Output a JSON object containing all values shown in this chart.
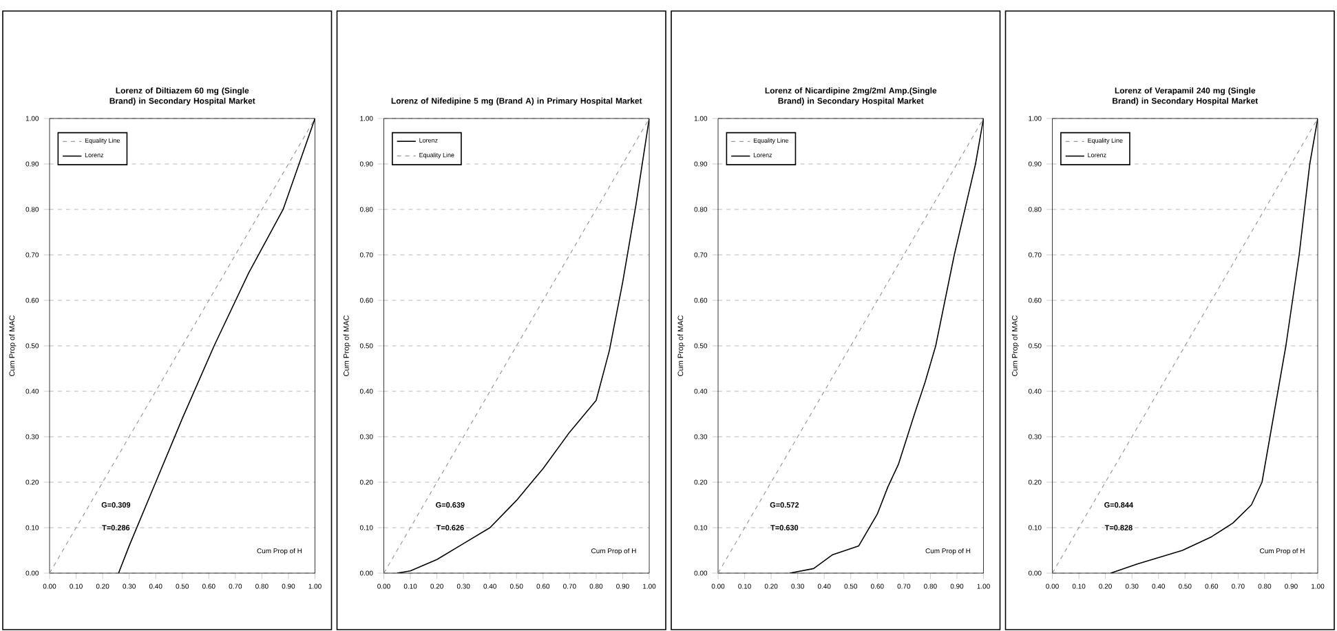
{
  "chart_data": [
    {
      "type": "line",
      "title": "Lorenz of Diltiazem 60 mg (Single Brand) in Secondary Hospital Market",
      "xlabel": "Cum Prop of H",
      "ylabel": "Cum Prop of MAC",
      "xlim": [
        0,
        1
      ],
      "ylim": [
        0,
        1
      ],
      "xticks": [
        {
          "value": 0,
          "label": "0.00"
        },
        {
          "value": 0.1,
          "label": "0.10"
        },
        {
          "value": 0.2,
          "label": "0.20"
        },
        {
          "value": 0.3,
          "label": "0.30"
        },
        {
          "value": 0.4,
          "label": "0.40"
        },
        {
          "value": 0.5,
          "label": "0.50"
        },
        {
          "value": 0.6,
          "label": "0.60"
        },
        {
          "value": 0.7,
          "label": "0.70"
        },
        {
          "value": 0.8,
          "label": "0.80"
        },
        {
          "value": 0.9,
          "label": "0.90"
        },
        {
          "value": 1,
          "label": "1.00"
        }
      ],
      "yticks": [
        {
          "value": 0,
          "label": "0.00"
        },
        {
          "value": 0.1,
          "label": "0.10"
        },
        {
          "value": 0.2,
          "label": "0.20"
        },
        {
          "value": 0.3,
          "label": "0.30"
        },
        {
          "value": 0.4,
          "label": "0.40"
        },
        {
          "value": 0.5,
          "label": "0.50"
        },
        {
          "value": 0.6,
          "label": "0.60"
        },
        {
          "value": 0.7,
          "label": "0.70"
        },
        {
          "value": 0.8,
          "label": "0.80"
        },
        {
          "value": 0.9,
          "label": "0.90"
        },
        {
          "value": 1,
          "label": "1.00"
        }
      ],
      "grid": "y",
      "legend": "top left",
      "annotations": [
        "G=0.309",
        "T=0.286"
      ],
      "series": [
        {
          "name": "Equality Line",
          "color": "#999999",
          "line_style": "dashed",
          "x": [
            0,
            1
          ],
          "values": [
            0,
            1
          ]
        },
        {
          "name": "Lorenz",
          "color": "#000000",
          "line_style": "solid",
          "x": [
            0.26,
            0.3,
            0.4,
            0.5,
            0.62,
            0.75,
            0.88,
            1
          ],
          "values": [
            0,
            0.06,
            0.2,
            0.34,
            0.5,
            0.66,
            0.8,
            1
          ]
        }
      ]
    },
    {
      "type": "line",
      "title": "Lorenz of Nifedipine 5 mg (Brand A) in Primary Hospital Market",
      "xlabel": "Cum Prop of H",
      "ylabel": "Cum Prop of MAC",
      "xlim": [
        0,
        1
      ],
      "ylim": [
        0,
        1
      ],
      "xticks": [
        {
          "value": 0,
          "label": "0.00"
        },
        {
          "value": 0.1,
          "label": "0.10"
        },
        {
          "value": 0.2,
          "label": "0.20"
        },
        {
          "value": 0.3,
          "label": "0.30"
        },
        {
          "value": 0.4,
          "label": "0.40"
        },
        {
          "value": 0.5,
          "label": "0.50"
        },
        {
          "value": 0.6,
          "label": "0.60"
        },
        {
          "value": 0.7,
          "label": "0.70"
        },
        {
          "value": 0.8,
          "label": "0.80"
        },
        {
          "value": 0.9,
          "label": "0.90"
        },
        {
          "value": 1,
          "label": "1.00"
        }
      ],
      "yticks": [
        {
          "value": 0,
          "label": "0.00"
        },
        {
          "value": 0.1,
          "label": "0.10"
        },
        {
          "value": 0.2,
          "label": "0.20"
        },
        {
          "value": 0.3,
          "label": "0.30"
        },
        {
          "value": 0.4,
          "label": "0.40"
        },
        {
          "value": 0.5,
          "label": "0.50"
        },
        {
          "value": 0.6,
          "label": "0.60"
        },
        {
          "value": 0.7,
          "label": "0.70"
        },
        {
          "value": 0.8,
          "label": "0.80"
        },
        {
          "value": 0.9,
          "label": "0.90"
        },
        {
          "value": 1,
          "label": "1.00"
        }
      ],
      "grid": "y",
      "legend": "top left",
      "annotations": [
        "G=0.639",
        "T=0.626"
      ],
      "series": [
        {
          "name": "Lorenz",
          "color": "#000000",
          "line_style": "solid",
          "x": [
            0.05,
            0.1,
            0.2,
            0.3,
            0.4,
            0.5,
            0.6,
            0.7,
            0.8,
            0.85,
            0.9,
            0.95,
            1
          ],
          "values": [
            0,
            0.005,
            0.03,
            0.065,
            0.1,
            0.16,
            0.23,
            0.31,
            0.38,
            0.49,
            0.64,
            0.81,
            1
          ]
        },
        {
          "name": "Equality Line",
          "color": "#999999",
          "line_style": "dashed",
          "x": [
            0,
            1
          ],
          "values": [
            0,
            1
          ]
        }
      ]
    },
    {
      "type": "line",
      "title": "Lorenz of Nicardipine 2mg/2ml Amp.(Single Brand) in Secondary Hospital Market",
      "xlabel": "Cum Prop of H",
      "ylabel": "Cum Prop of MAC",
      "xlim": [
        0,
        1
      ],
      "ylim": [
        0,
        1
      ],
      "xticks": [
        {
          "value": 0,
          "label": "0.00"
        },
        {
          "value": 0.1,
          "label": "0.10"
        },
        {
          "value": 0.2,
          "label": "0.20"
        },
        {
          "value": 0.3,
          "label": "0.30"
        },
        {
          "value": 0.4,
          "label": "0.40"
        },
        {
          "value": 0.5,
          "label": "0.50"
        },
        {
          "value": 0.6,
          "label": "0.60"
        },
        {
          "value": 0.7,
          "label": "0.70"
        },
        {
          "value": 0.8,
          "label": "0.80"
        },
        {
          "value": 0.9,
          "label": "0.90"
        },
        {
          "value": 1,
          "label": "1.00"
        }
      ],
      "yticks": [
        {
          "value": 0,
          "label": "0.00"
        },
        {
          "value": 0.1,
          "label": "0.10"
        },
        {
          "value": 0.2,
          "label": "0.20"
        },
        {
          "value": 0.3,
          "label": "0.30"
        },
        {
          "value": 0.4,
          "label": "0.40"
        },
        {
          "value": 0.5,
          "label": "0.50"
        },
        {
          "value": 0.6,
          "label": "0.60"
        },
        {
          "value": 0.7,
          "label": "0.70"
        },
        {
          "value": 0.8,
          "label": "0.80"
        },
        {
          "value": 0.9,
          "label": "0.90"
        },
        {
          "value": 1,
          "label": "1.00"
        }
      ],
      "grid": "y",
      "legend": "top left",
      "annotations": [
        "G=0.572",
        "T=0.630"
      ],
      "series": [
        {
          "name": "Equality Line",
          "color": "#999999",
          "line_style": "dashed",
          "x": [
            0,
            1
          ],
          "values": [
            0,
            1
          ]
        },
        {
          "name": "Lorenz",
          "color": "#000000",
          "line_style": "solid",
          "x": [
            0.27,
            0.36,
            0.43,
            0.53,
            0.6,
            0.64,
            0.68,
            0.74,
            0.78,
            0.82,
            0.89,
            0.97,
            1
          ],
          "values": [
            0,
            0.01,
            0.04,
            0.06,
            0.13,
            0.19,
            0.24,
            0.35,
            0.42,
            0.5,
            0.7,
            0.9,
            1
          ]
        }
      ]
    },
    {
      "type": "line",
      "title": "Lorenz of Verapamil 240 mg (Single Brand) in Secondary Hospital Market",
      "xlabel": "Cum Prop of H",
      "ylabel": "Cum Prop of MAC",
      "xlim": [
        0,
        1
      ],
      "ylim": [
        0,
        1
      ],
      "xticks": [
        {
          "value": 0,
          "label": "0.00"
        },
        {
          "value": 0.1,
          "label": "0.10"
        },
        {
          "value": 0.2,
          "label": "0.20"
        },
        {
          "value": 0.3,
          "label": "0.30"
        },
        {
          "value": 0.4,
          "label": "0.40"
        },
        {
          "value": 0.5,
          "label": "0.50"
        },
        {
          "value": 0.6,
          "label": "0.60"
        },
        {
          "value": 0.7,
          "label": "0.70"
        },
        {
          "value": 0.8,
          "label": "0.80"
        },
        {
          "value": 0.9,
          "label": "0.90"
        },
        {
          "value": 1,
          "label": "1.00"
        }
      ],
      "yticks": [
        {
          "value": 0,
          "label": "0.00"
        },
        {
          "value": 0.1,
          "label": "0.10"
        },
        {
          "value": 0.2,
          "label": "0.20"
        },
        {
          "value": 0.3,
          "label": "0.30"
        },
        {
          "value": 0.4,
          "label": "0.40"
        },
        {
          "value": 0.5,
          "label": "0.50"
        },
        {
          "value": 0.6,
          "label": "0.60"
        },
        {
          "value": 0.7,
          "label": "0.70"
        },
        {
          "value": 0.8,
          "label": "0.80"
        },
        {
          "value": 0.9,
          "label": "0.90"
        },
        {
          "value": 1,
          "label": "1.00"
        }
      ],
      "grid": "y",
      "legend": "top left",
      "annotations": [
        "G=0.844",
        "T=0.828"
      ],
      "series": [
        {
          "name": "Equality Line",
          "color": "#999999",
          "line_style": "dashed",
          "x": [
            0,
            1
          ],
          "values": [
            0,
            1
          ]
        },
        {
          "name": "Lorenz",
          "color": "#000000",
          "line_style": "solid",
          "x": [
            0.22,
            0.32,
            0.49,
            0.6,
            0.68,
            0.75,
            0.79,
            0.82,
            0.88,
            0.93,
            0.97,
            1
          ],
          "values": [
            0,
            0.02,
            0.05,
            0.08,
            0.11,
            0.15,
            0.2,
            0.3,
            0.5,
            0.7,
            0.9,
            1
          ]
        }
      ]
    }
  ]
}
